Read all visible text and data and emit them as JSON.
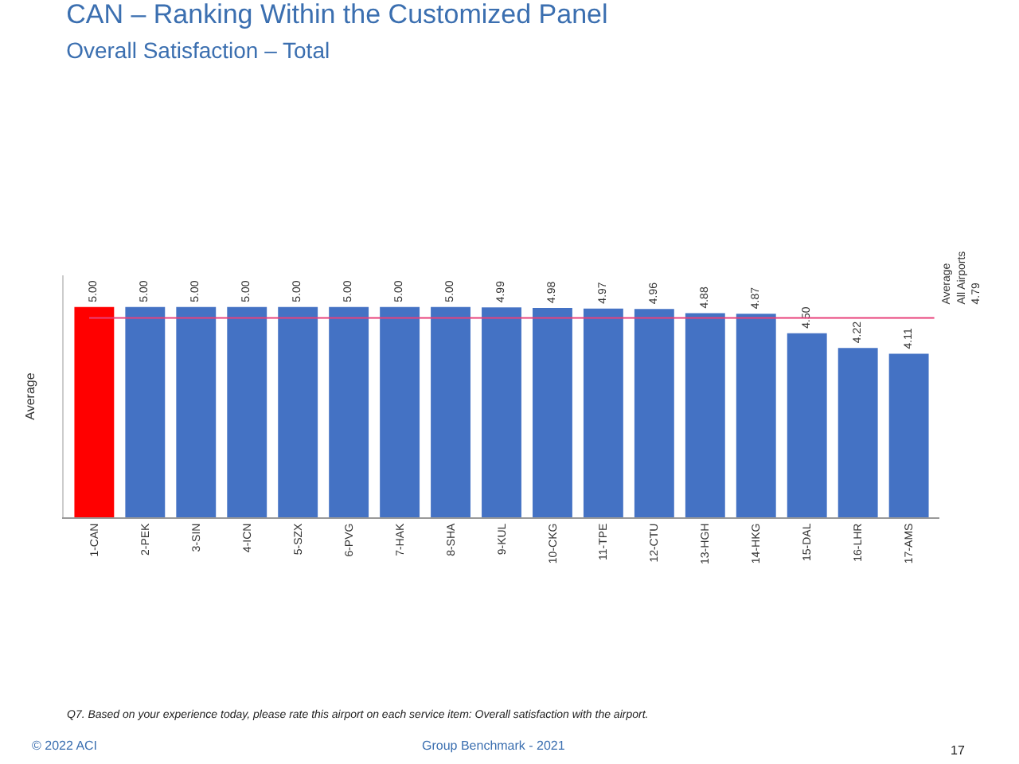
{
  "chart_data": {
    "type": "bar",
    "title": "CAN – Ranking Within the Customized Panel",
    "subtitle": "Overall Satisfaction – Total",
    "ylabel": "Average",
    "categories": [
      "1-CAN",
      "2-PEK",
      "3-SIN",
      "4-ICN",
      "5-SZX",
      "6-PVG",
      "7-HAK",
      "8-SHA",
      "9-KUL",
      "10-CKG",
      "11-TPE",
      "12-CTU",
      "13-HGH",
      "14-HKG",
      "15-DAL",
      "16-LHR",
      "17-AMS"
    ],
    "values": [
      5.0,
      5.0,
      5.0,
      5.0,
      5.0,
      5.0,
      5.0,
      5.0,
      4.99,
      4.98,
      4.97,
      4.96,
      4.88,
      4.87,
      4.5,
      4.22,
      4.11
    ],
    "value_labels": [
      "5.00",
      "5.00",
      "5.00",
      "5.00",
      "5.00",
      "5.00",
      "5.00",
      "5.00",
      "4.99",
      "4.98",
      "4.97",
      "4.96",
      "4.88",
      "4.87",
      "4.50",
      "4.22",
      "4.11"
    ],
    "colors": [
      "#ff0000",
      "#4472c4",
      "#4472c4",
      "#4472c4",
      "#4472c4",
      "#4472c4",
      "#4472c4",
      "#4472c4",
      "#4472c4",
      "#4472c4",
      "#4472c4",
      "#4472c4",
      "#4472c4",
      "#4472c4",
      "#4472c4",
      "#4472c4",
      "#4472c4"
    ],
    "ylim": [
      1,
      5.6
    ],
    "tick_labels": "x",
    "ref_lines": [
      {
        "axis": "y",
        "value": 4.79,
        "label": "Average\nAll Airports\n4.79",
        "color": "#e8417a"
      }
    ],
    "annotations": [
      "Q7. Based on your experience today, please rate this airport on each service item: Overall satisfaction with the airport.",
      "© 2022 ACI",
      "Group Benchmark - 2021",
      "17"
    ]
  }
}
